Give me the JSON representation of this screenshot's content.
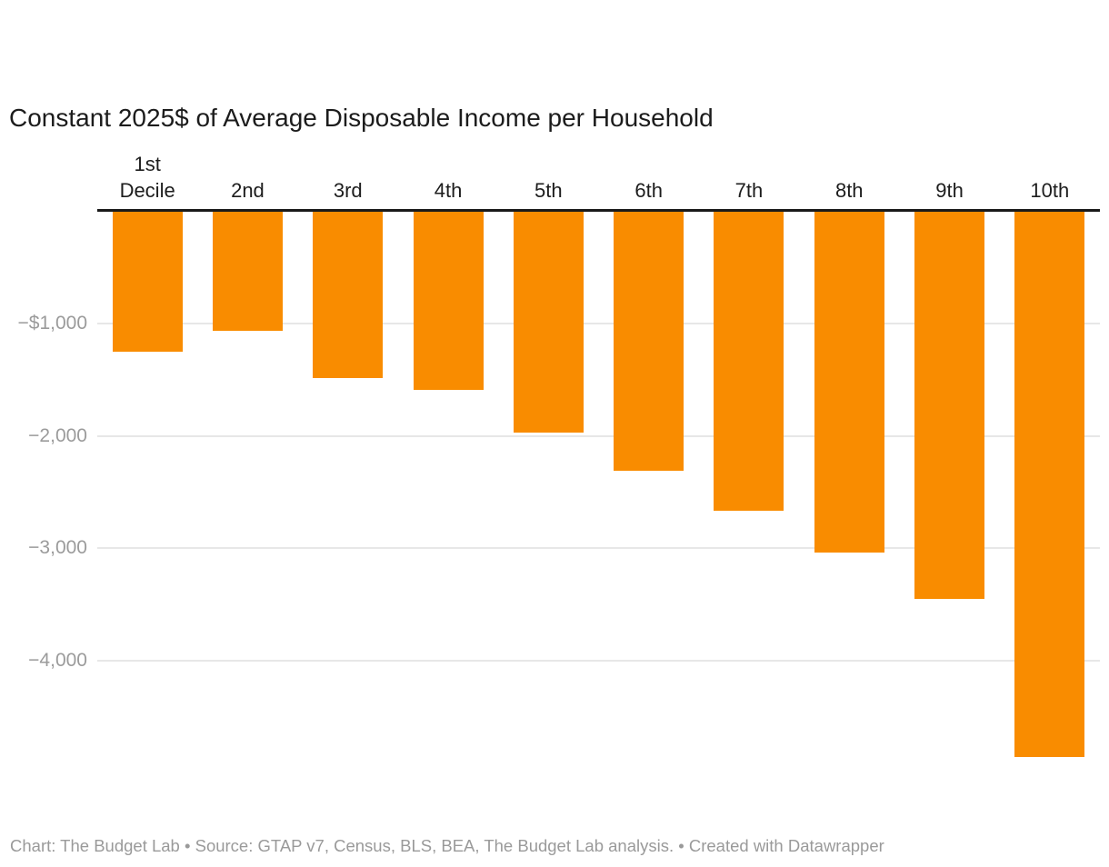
{
  "title": "Constant 2025$ of Average Disposable Income per Household",
  "footer": {
    "text": "Chart: The Budget Lab • Source: GTAP v7, Census, BLS, BEA, The Budget Lab analysis. • Created with Datawrapper"
  },
  "colors": {
    "bar": "#F98C00",
    "zero_line": "#1a1a1a",
    "gridline": "#e7e7e7",
    "tick_label": "#9b9b9b",
    "category_label": "#1d1d1d",
    "title_text": "#1c1c1c",
    "footer_text": "#9a9a9a",
    "background": "#ffffff"
  },
  "chart_data": {
    "type": "bar",
    "orientation": "vertical",
    "title": "Constant 2025$ of Average Disposable Income per Household",
    "categories": [
      "1st Decile",
      "2nd",
      "3rd",
      "4th",
      "5th",
      "6th",
      "7th",
      "8th",
      "9th",
      "10th"
    ],
    "values": [
      -1250,
      -1060,
      -1480,
      -1590,
      -1970,
      -2310,
      -2670,
      -3040,
      -3450,
      -4860
    ],
    "xlabel": "",
    "ylabel": "",
    "ylim": [
      -5000,
      0
    ],
    "yticks": [
      {
        "value": -1000,
        "label": "−$1,000"
      },
      {
        "value": -2000,
        "label": "−2,000"
      },
      {
        "value": -3000,
        "label": "−3,000"
      },
      {
        "value": -4000,
        "label": "−4,000"
      }
    ],
    "grid": true,
    "legend": false,
    "bar_color": "#F98C00"
  }
}
